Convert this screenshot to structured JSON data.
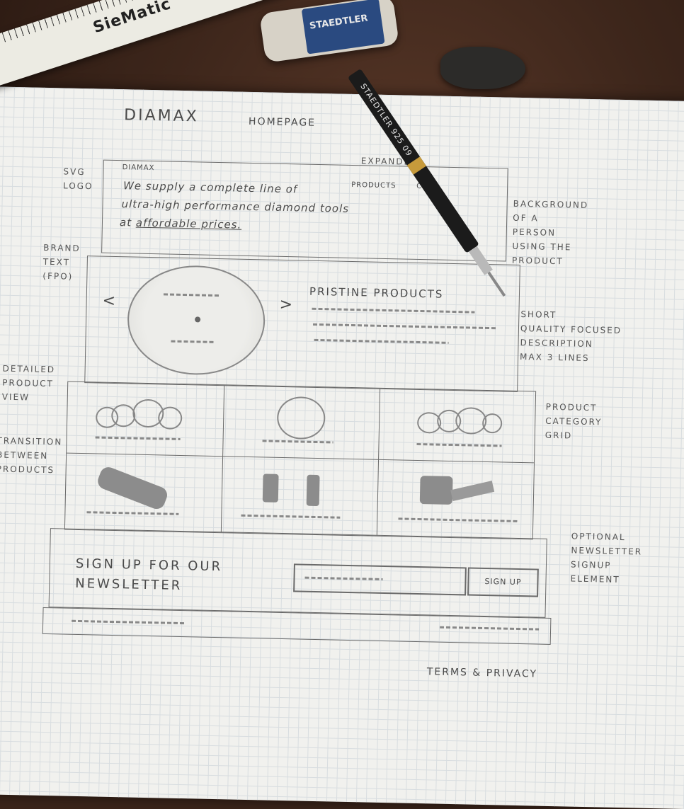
{
  "ruler_brand": "SieMatic",
  "eraser_brand": "STAEDTLER",
  "pencil_print": "STAEDTLER 925 09",
  "sheet": {
    "brand": "DIAMAX",
    "page": "HOMEPAGE"
  },
  "hero": {
    "logo_text": "DIAMAX",
    "tagline_line1": "We supply a complete line of",
    "tagline_line2": "ultra-high performance diamond tools",
    "tagline_line3_prefix": "at",
    "tagline_link": "affordable prices.",
    "nav_products": "PRODUCTS",
    "nav_contact": "CO"
  },
  "carousel": {
    "prev": "<",
    "next": ">",
    "heading": "PRISTINE PRODUCTS"
  },
  "newsletter": {
    "heading_line1": "SIGN UP FOR OUR",
    "heading_line2": "NEWSLETTER",
    "button": "SIGN UP"
  },
  "footer": {
    "terms": "TERMS & PRIVACY"
  },
  "annotations": {
    "svg_logo": [
      "SVG",
      "LOGO"
    ],
    "expanded": "EXPANDED",
    "background": [
      "BACKGROUND",
      "OF A",
      "PERSON",
      "USING THE",
      "PRODUCT"
    ],
    "brand_text": [
      "BRAND",
      "TEXT",
      "(FPO)"
    ],
    "short_desc": [
      "SHORT",
      "QUALITY FOCUSED",
      "DESCRIPTION",
      "MAX 3 LINES"
    ],
    "detailed": [
      "DETAILED",
      "PRODUCT",
      "VIEW"
    ],
    "transition": [
      "TRANSITION",
      "BETWEEN",
      "PRODUCTS"
    ],
    "category_grid": [
      "PRODUCT",
      "CATEGORY",
      "GRID"
    ],
    "newsletter_note": [
      "OPTIONAL",
      "NEWSLETTER",
      "SIGNUP",
      "ELEMENT"
    ]
  }
}
